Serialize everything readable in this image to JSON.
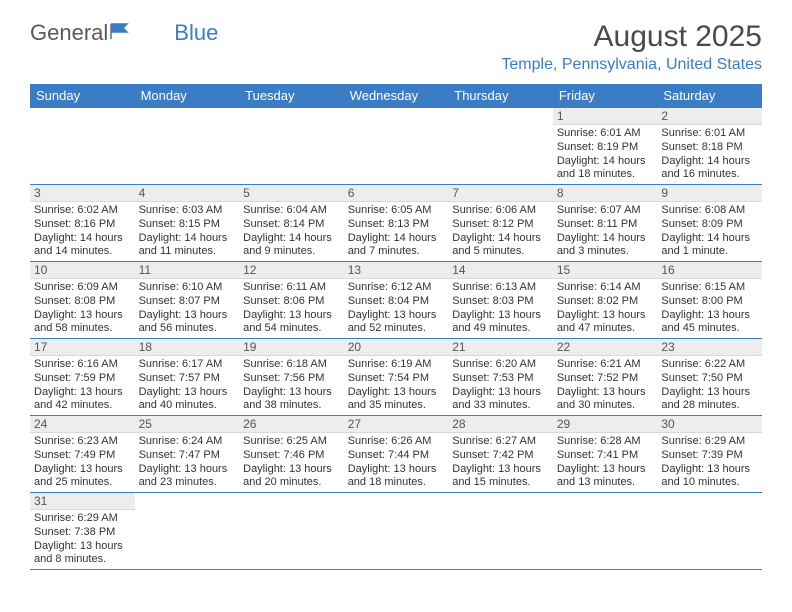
{
  "logo": {
    "text1": "General",
    "text2": "Blue"
  },
  "title": "August 2025",
  "location": "Temple, Pennsylvania, United States",
  "colors": {
    "header_bg": "#3b7dc4",
    "header_text": "#ffffff",
    "accent": "#3b7dc4",
    "daynum_bg": "#ededed",
    "body_text": "#333333",
    "logo_gray": "#5a5a5a"
  },
  "weekdays": [
    "Sunday",
    "Monday",
    "Tuesday",
    "Wednesday",
    "Thursday",
    "Friday",
    "Saturday"
  ],
  "weeks": [
    [
      null,
      null,
      null,
      null,
      null,
      {
        "n": "1",
        "sr": "Sunrise: 6:01 AM",
        "ss": "Sunset: 8:19 PM",
        "dl": "Daylight: 14 hours and 18 minutes."
      },
      {
        "n": "2",
        "sr": "Sunrise: 6:01 AM",
        "ss": "Sunset: 8:18 PM",
        "dl": "Daylight: 14 hours and 16 minutes."
      }
    ],
    [
      {
        "n": "3",
        "sr": "Sunrise: 6:02 AM",
        "ss": "Sunset: 8:16 PM",
        "dl": "Daylight: 14 hours and 14 minutes."
      },
      {
        "n": "4",
        "sr": "Sunrise: 6:03 AM",
        "ss": "Sunset: 8:15 PM",
        "dl": "Daylight: 14 hours and 11 minutes."
      },
      {
        "n": "5",
        "sr": "Sunrise: 6:04 AM",
        "ss": "Sunset: 8:14 PM",
        "dl": "Daylight: 14 hours and 9 minutes."
      },
      {
        "n": "6",
        "sr": "Sunrise: 6:05 AM",
        "ss": "Sunset: 8:13 PM",
        "dl": "Daylight: 14 hours and 7 minutes."
      },
      {
        "n": "7",
        "sr": "Sunrise: 6:06 AM",
        "ss": "Sunset: 8:12 PM",
        "dl": "Daylight: 14 hours and 5 minutes."
      },
      {
        "n": "8",
        "sr": "Sunrise: 6:07 AM",
        "ss": "Sunset: 8:11 PM",
        "dl": "Daylight: 14 hours and 3 minutes."
      },
      {
        "n": "9",
        "sr": "Sunrise: 6:08 AM",
        "ss": "Sunset: 8:09 PM",
        "dl": "Daylight: 14 hours and 1 minute."
      }
    ],
    [
      {
        "n": "10",
        "sr": "Sunrise: 6:09 AM",
        "ss": "Sunset: 8:08 PM",
        "dl": "Daylight: 13 hours and 58 minutes."
      },
      {
        "n": "11",
        "sr": "Sunrise: 6:10 AM",
        "ss": "Sunset: 8:07 PM",
        "dl": "Daylight: 13 hours and 56 minutes."
      },
      {
        "n": "12",
        "sr": "Sunrise: 6:11 AM",
        "ss": "Sunset: 8:06 PM",
        "dl": "Daylight: 13 hours and 54 minutes."
      },
      {
        "n": "13",
        "sr": "Sunrise: 6:12 AM",
        "ss": "Sunset: 8:04 PM",
        "dl": "Daylight: 13 hours and 52 minutes."
      },
      {
        "n": "14",
        "sr": "Sunrise: 6:13 AM",
        "ss": "Sunset: 8:03 PM",
        "dl": "Daylight: 13 hours and 49 minutes."
      },
      {
        "n": "15",
        "sr": "Sunrise: 6:14 AM",
        "ss": "Sunset: 8:02 PM",
        "dl": "Daylight: 13 hours and 47 minutes."
      },
      {
        "n": "16",
        "sr": "Sunrise: 6:15 AM",
        "ss": "Sunset: 8:00 PM",
        "dl": "Daylight: 13 hours and 45 minutes."
      }
    ],
    [
      {
        "n": "17",
        "sr": "Sunrise: 6:16 AM",
        "ss": "Sunset: 7:59 PM",
        "dl": "Daylight: 13 hours and 42 minutes."
      },
      {
        "n": "18",
        "sr": "Sunrise: 6:17 AM",
        "ss": "Sunset: 7:57 PM",
        "dl": "Daylight: 13 hours and 40 minutes."
      },
      {
        "n": "19",
        "sr": "Sunrise: 6:18 AM",
        "ss": "Sunset: 7:56 PM",
        "dl": "Daylight: 13 hours and 38 minutes."
      },
      {
        "n": "20",
        "sr": "Sunrise: 6:19 AM",
        "ss": "Sunset: 7:54 PM",
        "dl": "Daylight: 13 hours and 35 minutes."
      },
      {
        "n": "21",
        "sr": "Sunrise: 6:20 AM",
        "ss": "Sunset: 7:53 PM",
        "dl": "Daylight: 13 hours and 33 minutes."
      },
      {
        "n": "22",
        "sr": "Sunrise: 6:21 AM",
        "ss": "Sunset: 7:52 PM",
        "dl": "Daylight: 13 hours and 30 minutes."
      },
      {
        "n": "23",
        "sr": "Sunrise: 6:22 AM",
        "ss": "Sunset: 7:50 PM",
        "dl": "Daylight: 13 hours and 28 minutes."
      }
    ],
    [
      {
        "n": "24",
        "sr": "Sunrise: 6:23 AM",
        "ss": "Sunset: 7:49 PM",
        "dl": "Daylight: 13 hours and 25 minutes."
      },
      {
        "n": "25",
        "sr": "Sunrise: 6:24 AM",
        "ss": "Sunset: 7:47 PM",
        "dl": "Daylight: 13 hours and 23 minutes."
      },
      {
        "n": "26",
        "sr": "Sunrise: 6:25 AM",
        "ss": "Sunset: 7:46 PM",
        "dl": "Daylight: 13 hours and 20 minutes."
      },
      {
        "n": "27",
        "sr": "Sunrise: 6:26 AM",
        "ss": "Sunset: 7:44 PM",
        "dl": "Daylight: 13 hours and 18 minutes."
      },
      {
        "n": "28",
        "sr": "Sunrise: 6:27 AM",
        "ss": "Sunset: 7:42 PM",
        "dl": "Daylight: 13 hours and 15 minutes."
      },
      {
        "n": "29",
        "sr": "Sunrise: 6:28 AM",
        "ss": "Sunset: 7:41 PM",
        "dl": "Daylight: 13 hours and 13 minutes."
      },
      {
        "n": "30",
        "sr": "Sunrise: 6:29 AM",
        "ss": "Sunset: 7:39 PM",
        "dl": "Daylight: 13 hours and 10 minutes."
      }
    ],
    [
      {
        "n": "31",
        "sr": "Sunrise: 6:29 AM",
        "ss": "Sunset: 7:38 PM",
        "dl": "Daylight: 13 hours and 8 minutes."
      },
      null,
      null,
      null,
      null,
      null,
      null
    ]
  ]
}
